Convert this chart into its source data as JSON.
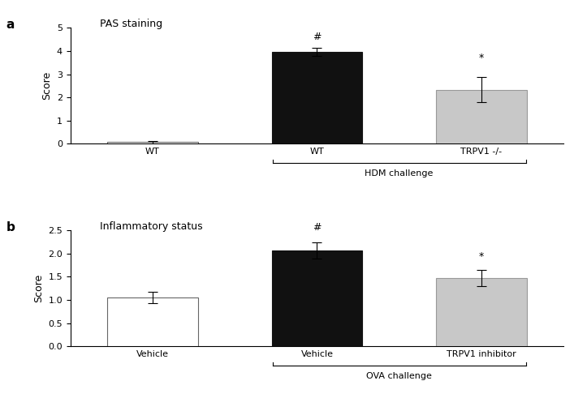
{
  "panel_a": {
    "title": "PAS staining",
    "panel_label": "a",
    "categories": [
      "WT",
      "WT",
      "TRPV1 -/-"
    ],
    "values": [
      0.07,
      3.97,
      2.33
    ],
    "errors": [
      0.05,
      0.18,
      0.55
    ],
    "colors": [
      "#ffffff",
      "#111111",
      "#c8c8c8"
    ],
    "edge_colors": [
      "#666666",
      "#111111",
      "#999999"
    ],
    "ylabel": "Score",
    "ylim": [
      0,
      5
    ],
    "yticks": [
      0,
      1,
      2,
      3,
      4,
      5
    ],
    "bracket_label": "HDM challenge",
    "annotations": [
      "",
      "#",
      "*"
    ],
    "annotation_offsets": [
      0,
      0.22,
      0.6
    ]
  },
  "panel_b": {
    "title": "Inflammatory status",
    "panel_label": "b",
    "categories": [
      "Vehicle",
      "Vehicle",
      "TRPV1 inhibitor"
    ],
    "values": [
      1.05,
      2.07,
      1.47
    ],
    "errors": [
      0.12,
      0.18,
      0.17
    ],
    "colors": [
      "#ffffff",
      "#111111",
      "#c8c8c8"
    ],
    "edge_colors": [
      "#666666",
      "#111111",
      "#999999"
    ],
    "ylabel": "Score",
    "ylim": [
      0,
      2.5
    ],
    "yticks": [
      0.0,
      0.5,
      1.0,
      1.5,
      2.0,
      2.5
    ],
    "bracket_label": "OVA challenge",
    "annotations": [
      "",
      "#",
      "*"
    ],
    "annotation_offsets": [
      0.14,
      0.2,
      0.19
    ]
  }
}
